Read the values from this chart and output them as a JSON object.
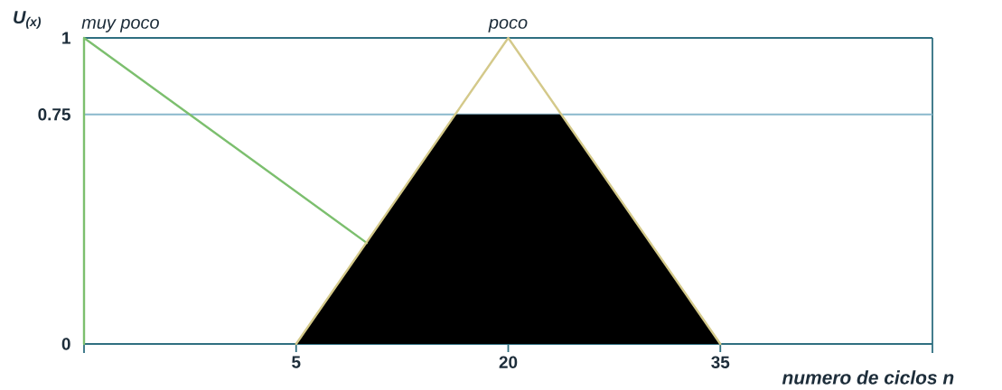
{
  "chart_data": {
    "type": "line",
    "xlabel": "numero de ciclos n",
    "ylabel": "U$_{(x)}$",
    "xlim": [
      -10,
      50
    ],
    "xticks": [
      5,
      20,
      35
    ],
    "ylim": [
      0,
      1
    ],
    "yticks": [
      0,
      0.75,
      1
    ],
    "legend": false,
    "grid": false,
    "marker": "none",
    "series": [
      {
        "type": "area",
        "color": "#000000",
        "x": [
          5,
          16.25,
          23.75,
          35
        ],
        "values": [
          0,
          0.75,
          0.75,
          0
        ]
      },
      {
        "name": "muy poco",
        "color": "#7cbf6e",
        "x": [
          -10,
          -10,
          10
        ],
        "values": [
          0,
          1,
          0.33
        ]
      },
      {
        "name": "poco",
        "color": "#d4c98a",
        "x": [
          5,
          20,
          35
        ],
        "values": [
          0,
          1,
          0
        ]
      }
    ],
    "ref_lines": [
      {
        "axis": "y",
        "value": 0.75,
        "color": "#8ab8cc"
      }
    ]
  }
}
